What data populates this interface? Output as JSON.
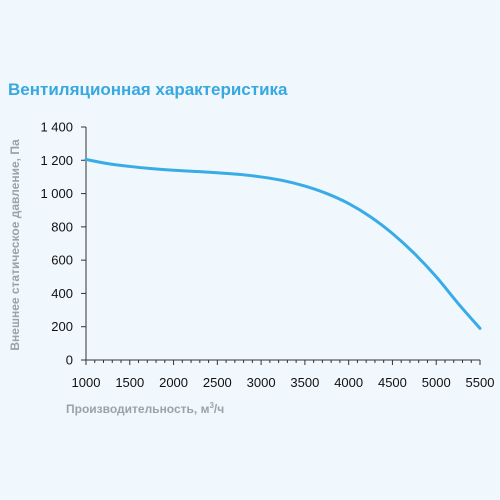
{
  "chart_data": {
    "type": "line",
    "title": "Вентиляционная характеристика",
    "ylabel": "Внешнее статическое давление, Па",
    "xlabel_main": "Производительность, м",
    "xlabel_sup": "3",
    "xlabel_suffix": "/ч",
    "xlim": [
      1000,
      5500
    ],
    "ylim": [
      0,
      1400
    ],
    "xticks": [
      1000,
      1500,
      2000,
      2500,
      3000,
      3500,
      4000,
      4500,
      5000,
      5500
    ],
    "xtick_labels": [
      "1000",
      "1500",
      "2000",
      "2500",
      "3000",
      "3500",
      "4000",
      "4500",
      "5000",
      "5500"
    ],
    "yticks": [
      0,
      200,
      400,
      600,
      800,
      1000,
      1200,
      1400
    ],
    "ytick_labels": [
      "0",
      "200",
      "400",
      "600",
      "800",
      "1 000",
      "1 200",
      "1 400"
    ],
    "grid": false,
    "series": [
      {
        "color": "#38ace6",
        "x": [
          1000,
          1250,
          1500,
          1750,
          2000,
          2250,
          2500,
          2750,
          3000,
          3250,
          3500,
          3750,
          4000,
          4250,
          4500,
          4750,
          5000,
          5250,
          5500
        ],
        "y": [
          1205,
          1180,
          1163,
          1150,
          1140,
          1133,
          1125,
          1115,
          1100,
          1078,
          1045,
          1000,
          940,
          860,
          760,
          640,
          500,
          340,
          190
        ]
      }
    ]
  }
}
